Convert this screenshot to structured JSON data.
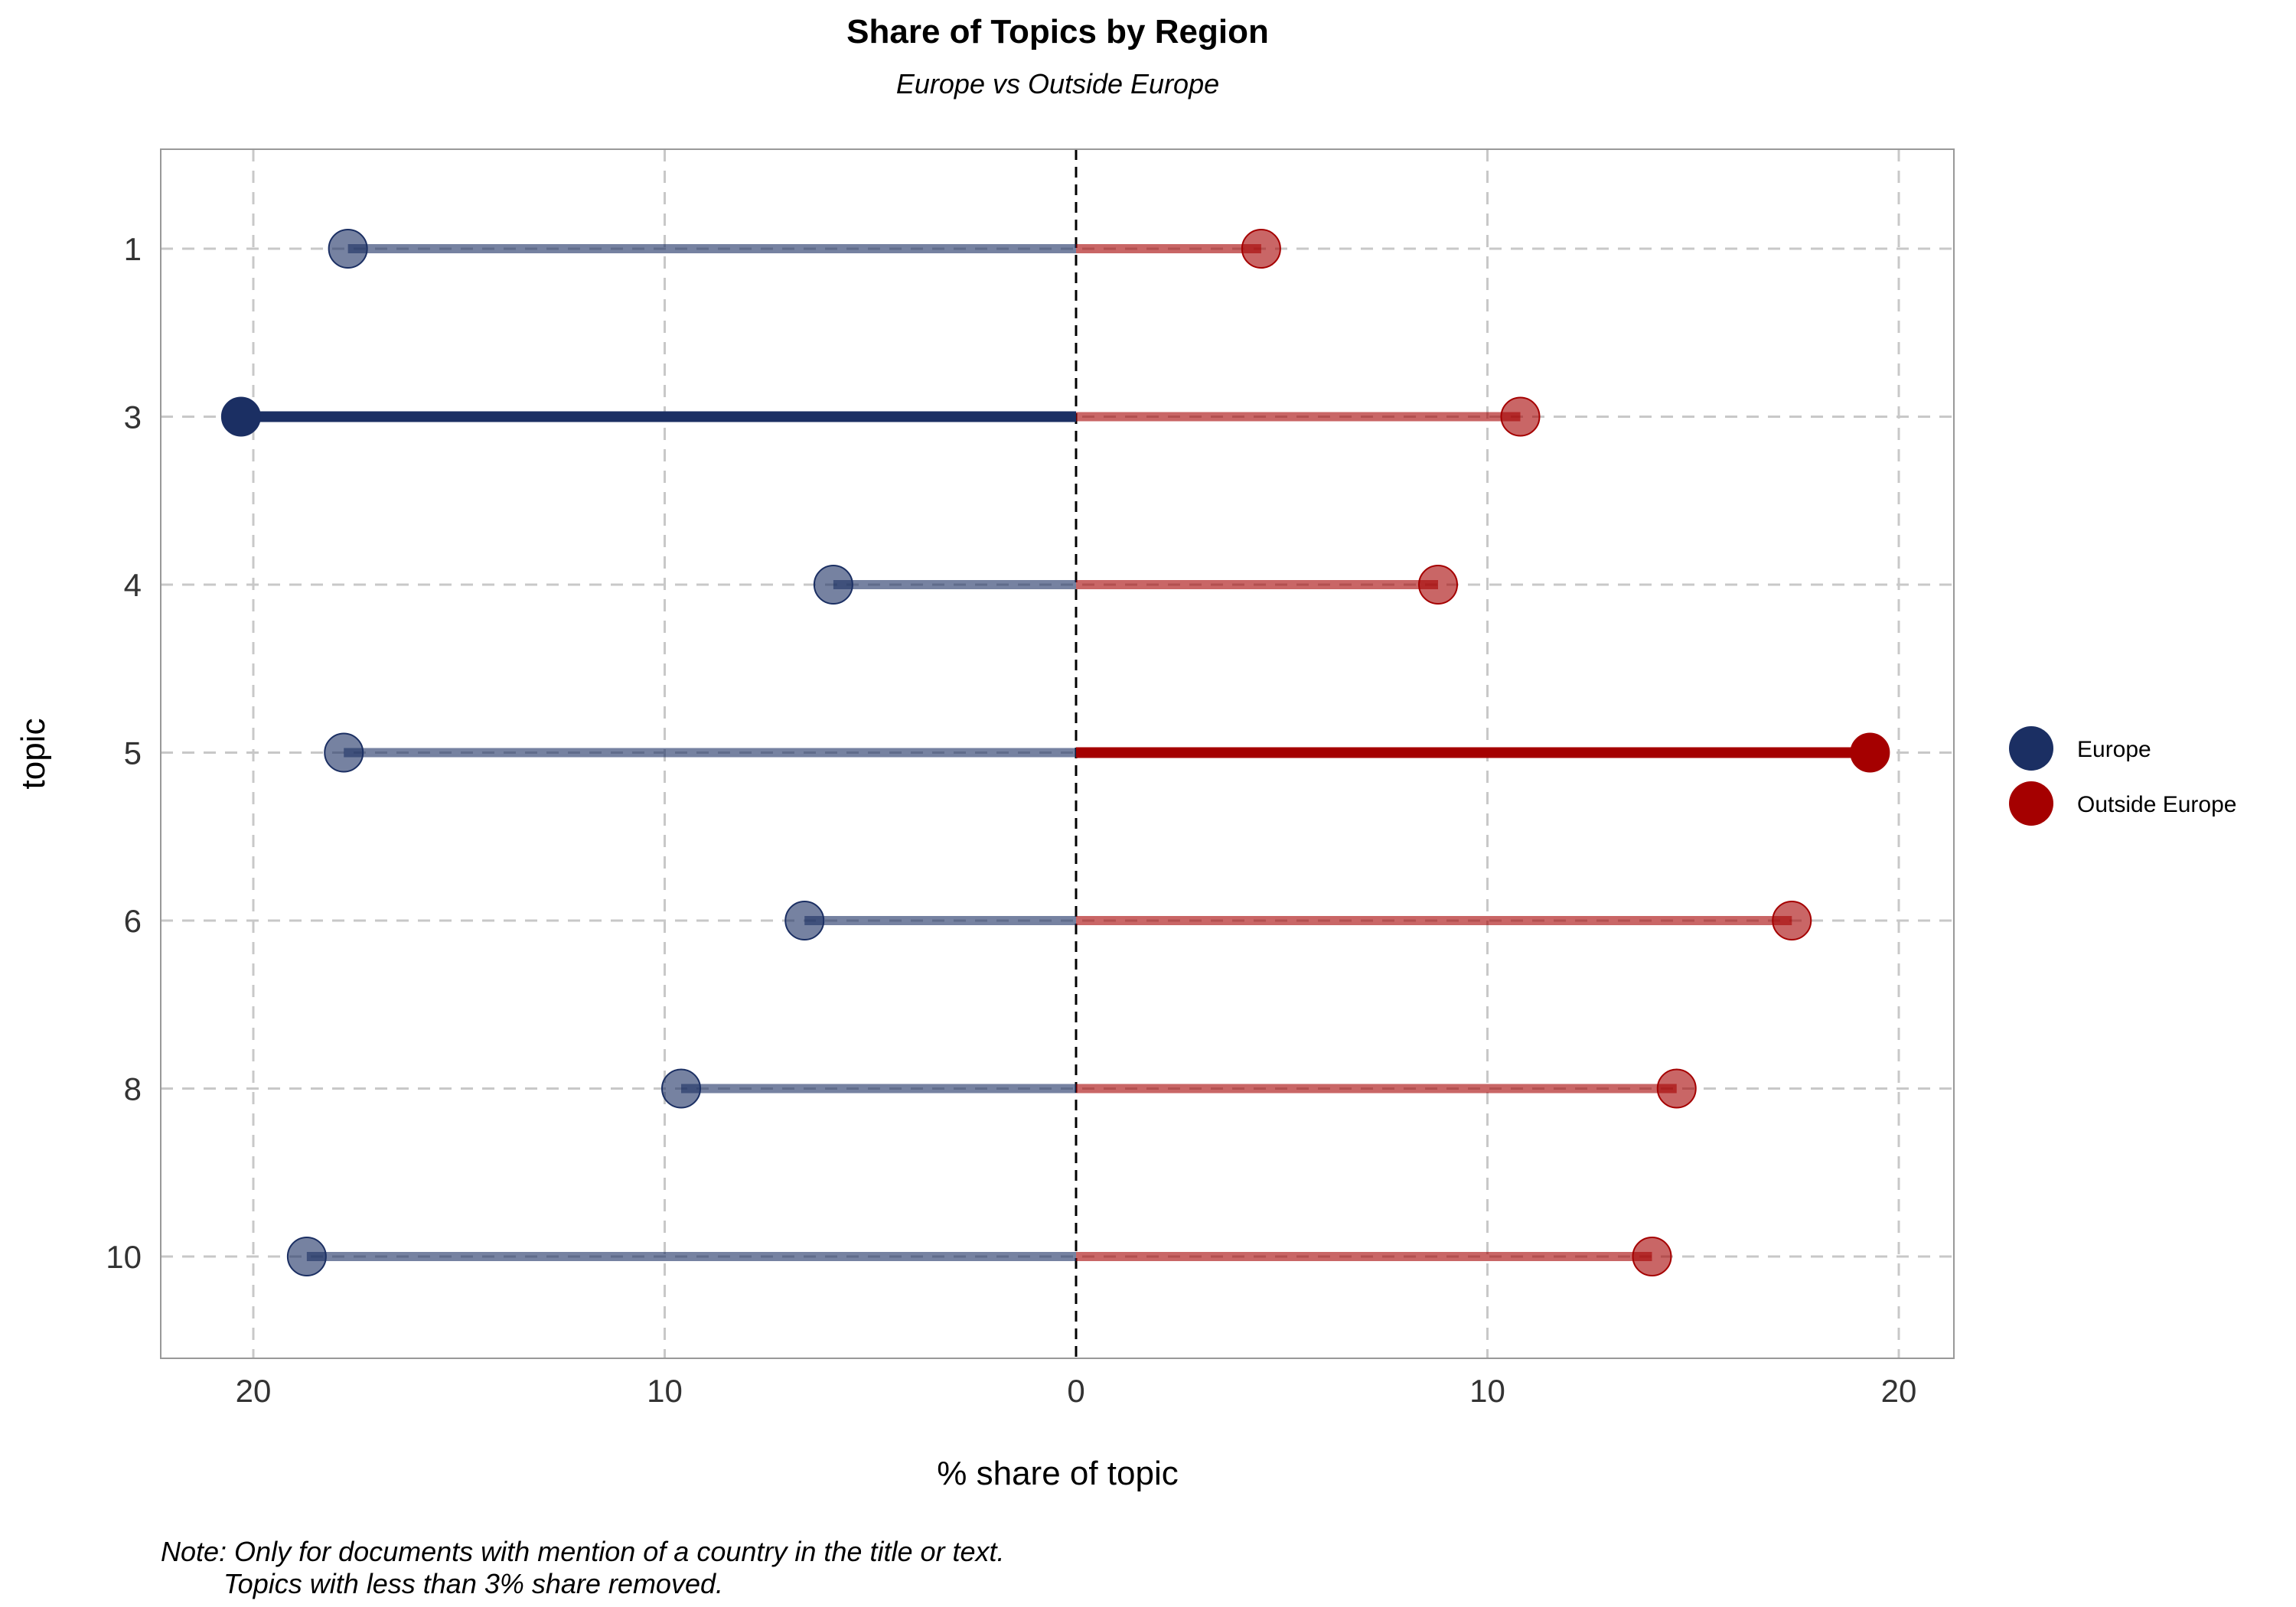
{
  "chart_data": {
    "type": "lollipop",
    "title": "Share of Topics by Region",
    "subtitle": "Europe vs Outside Europe",
    "xlabel": "% share of topic",
    "ylabel": "topic",
    "xlim": [
      -22,
      21.5
    ],
    "x_ticks": [
      -20,
      -10,
      0,
      10,
      20
    ],
    "x_tick_labels": [
      "20",
      "10",
      "0",
      "10",
      "20"
    ],
    "categories": [
      "1",
      "3",
      "4",
      "5",
      "6",
      "8",
      "10"
    ],
    "series": [
      {
        "name": "Europe",
        "color": "#1B2F63",
        "direction": "left",
        "values": [
          17.7,
          20.3,
          5.9,
          17.8,
          6.6,
          9.6,
          18.7
        ],
        "highlight": "3"
      },
      {
        "name": "Outside Europe",
        "color": "#A50000",
        "direction": "right",
        "values": [
          4.5,
          10.8,
          8.8,
          19.3,
          17.4,
          14.6,
          14.0
        ],
        "highlight": "5"
      }
    ],
    "grid": true,
    "legend_position": "right",
    "note_lines": [
      "Note: Only for documents with mention of a country in the title or text.",
      "Topics with less than 3% share removed."
    ]
  }
}
